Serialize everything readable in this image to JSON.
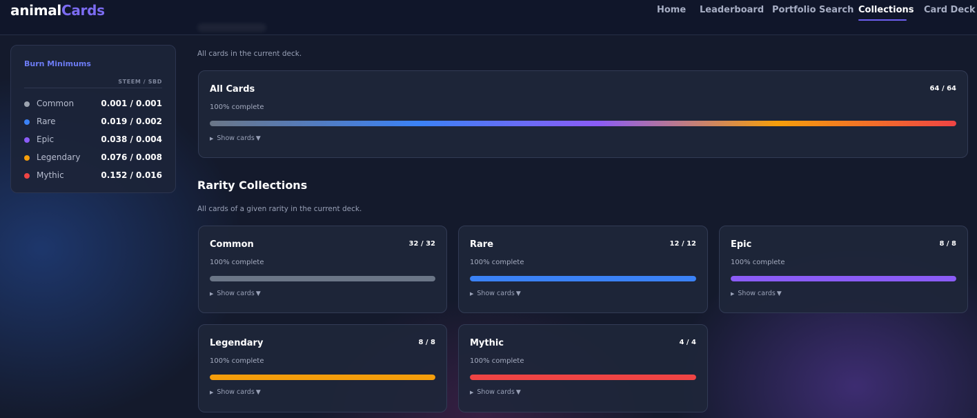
{
  "app": {
    "logo_part1": "animal",
    "logo_part2": "Cards"
  },
  "nav": [
    {
      "label": "Home",
      "active": false
    },
    {
      "label": "Leaderboard",
      "active": false
    },
    {
      "label": "Portfolio Search",
      "active": false
    },
    {
      "label": "Collections",
      "active": true
    },
    {
      "label": "Card Deck",
      "active": false
    }
  ],
  "burn": {
    "title": "Burn Minimums",
    "header": "STEEM / SBD",
    "rows": [
      {
        "name": "Common",
        "value": "0.001 / 0.001",
        "color": "#9ca3af"
      },
      {
        "name": "Rare",
        "value": "0.019 / 0.002",
        "color": "#3b82f6"
      },
      {
        "name": "Epic",
        "value": "0.038 / 0.004",
        "color": "#8b5cf6"
      },
      {
        "name": "Legendary",
        "value": "0.076 / 0.008",
        "color": "#f59e0b"
      },
      {
        "name": "Mythic",
        "value": "0.152 / 0.016",
        "color": "#ef4444"
      }
    ]
  },
  "deck": {
    "subtitle": "All cards in the current deck.",
    "all_cards": {
      "title": "All Cards",
      "count": "64 / 64",
      "pct_text": "100% complete",
      "progress": 1.0,
      "show_label": "Show cards"
    }
  },
  "rarity": {
    "title": "Rarity Collections",
    "subtitle": "All cards of a given rarity in the current deck.",
    "cards": [
      {
        "title": "Common",
        "count": "32 / 32",
        "pct_text": "100% complete",
        "progress": 1.0,
        "color": "#6b7687",
        "show_label": "Show cards"
      },
      {
        "title": "Rare",
        "count": "12 / 12",
        "pct_text": "100% complete",
        "progress": 1.0,
        "color": "#3b82f6",
        "show_label": "Show cards"
      },
      {
        "title": "Epic",
        "count": "8 / 8",
        "pct_text": "100% complete",
        "progress": 1.0,
        "color": "#8b5cf6",
        "show_label": "Show cards"
      },
      {
        "title": "Legendary",
        "count": "8 / 8",
        "pct_text": "100% complete",
        "progress": 1.0,
        "color": "#f59e0b",
        "show_label": "Show cards"
      },
      {
        "title": "Mythic",
        "count": "4 / 4",
        "pct_text": "100% complete",
        "progress": 1.0,
        "color": "#ef4444",
        "show_label": "Show cards"
      }
    ]
  },
  "icons": {
    "expand": "triangle-right-icon",
    "caret": "caret-down-icon"
  }
}
